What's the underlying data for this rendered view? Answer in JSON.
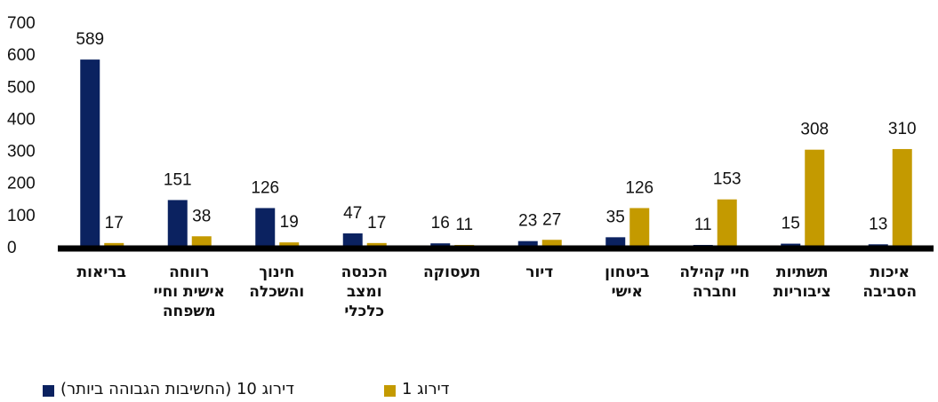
{
  "chart_data": {
    "type": "bar",
    "categories": [
      "בריאות",
      "רווחה\nאישית וחיי\nמשפחה",
      "חינוך\nוהשכלה",
      "הכנסה\nומצב\nכלכלי",
      "תעסוקה",
      "דיור",
      "ביטחון\nאישי",
      "חיי קהילה\nוחברה",
      "תשתיות\nציבוריות",
      "איכות\nהסביבה"
    ],
    "series": [
      {
        "name": "דירוג 10 (החשיבות הגבוהה ביותר)",
        "color": "#0b2260",
        "values": [
          589,
          151,
          126,
          47,
          16,
          23,
          35,
          11,
          15,
          13
        ]
      },
      {
        "name": "דירוג 1",
        "color": "#c49a00",
        "values": [
          17,
          38,
          19,
          17,
          11,
          27,
          126,
          153,
          308,
          310
        ]
      }
    ],
    "ylim": [
      0,
      700
    ],
    "yticks": [
      0,
      100,
      200,
      300,
      400,
      500,
      600,
      700
    ],
    "grid": false
  }
}
